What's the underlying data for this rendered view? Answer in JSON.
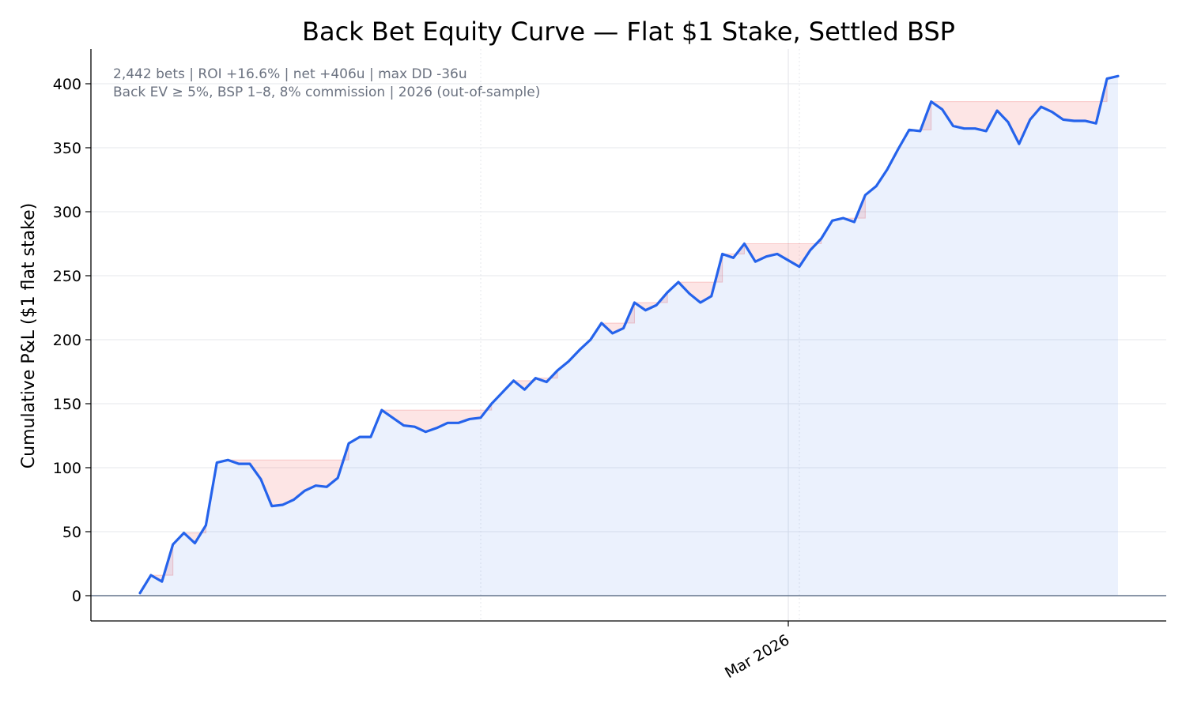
{
  "chart_data": {
    "type": "line",
    "title": "Back Bet Equity Curve — Flat $1 Stake, Settled BSP",
    "xlabel": "",
    "ylabel": "Cumulative P&L ($1 flat stake)",
    "ylim": [
      -20,
      425
    ],
    "yticks": [
      0,
      50,
      100,
      150,
      200,
      250,
      300,
      350,
      400
    ],
    "xtick_label": "Mar 2026",
    "annotation_lines": [
      "2,442 bets  |  ROI +16.6%  |  net +406u  |  max DD -36u",
      "Back EV ≥ 5%, BSP 1–8, 8% commission  |  2026 (out-of-sample)"
    ],
    "grid": true,
    "colors": {
      "line": "#2563eb",
      "fill": "#2563eb",
      "drawdown": "#ef4444",
      "zero_line": "#64748b"
    },
    "series": [
      {
        "values": [
          2,
          16,
          11,
          40,
          49,
          41,
          55,
          104,
          106,
          103,
          103,
          91,
          70,
          71,
          75,
          82,
          86,
          85,
          92,
          119,
          124,
          124,
          145,
          139,
          133,
          132,
          128,
          131,
          135,
          135,
          138,
          139,
          150,
          159,
          168,
          161,
          170,
          167,
          176,
          183,
          192,
          200,
          213,
          205,
          209,
          229,
          223,
          227,
          237,
          245,
          236,
          229,
          234,
          267,
          264,
          275,
          261,
          265,
          267,
          262,
          257,
          270,
          279,
          293,
          295,
          292,
          313,
          320,
          333,
          349,
          364,
          363,
          386,
          380,
          367,
          365,
          365,
          363,
          379,
          370,
          353,
          372,
          382,
          378,
          372,
          371,
          371,
          369,
          404,
          406
        ]
      }
    ]
  }
}
